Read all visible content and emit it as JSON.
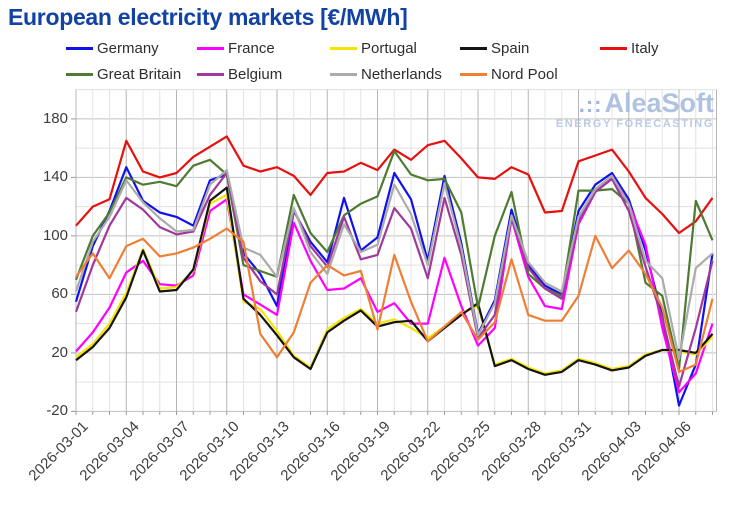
{
  "title": "European electricity markets [€/MWh]",
  "watermark": {
    "dots": ".::",
    "brand": "AleaSoft",
    "tagline": "ENERGY FORECASTING"
  },
  "chart_data": {
    "type": "line",
    "title": "European electricity markets [€/MWh]",
    "x": [
      "2026-03-01",
      "2026-03-02",
      "2026-03-03",
      "2026-03-04",
      "2026-03-05",
      "2026-03-06",
      "2026-03-07",
      "2026-03-08",
      "2026-03-09",
      "2026-03-10",
      "2026-03-11",
      "2026-03-12",
      "2026-03-13",
      "2026-03-14",
      "2026-03-15",
      "2026-03-16",
      "2026-03-17",
      "2026-03-18",
      "2026-03-19",
      "2026-03-20",
      "2026-03-21",
      "2026-03-22",
      "2026-03-23",
      "2026-03-24",
      "2026-03-25",
      "2026-03-26",
      "2026-03-27",
      "2026-03-28",
      "2026-03-29",
      "2026-03-30",
      "2026-03-31",
      "2026-04-01",
      "2026-04-02",
      "2026-04-03",
      "2026-04-04",
      "2026-04-05",
      "2026-04-06",
      "2026-04-07",
      "2026-04-08"
    ],
    "x_tick_labels": [
      "2026-03-01",
      "2026-03-04",
      "2026-03-07",
      "2026-03-10",
      "2026-03-13",
      "2026-03-16",
      "2026-03-19",
      "2026-03-22",
      "2026-03-25",
      "2026-03-28",
      "2026-03-31",
      "2026-04-03",
      "2026-04-06"
    ],
    "ylim": [
      -20,
      200
    ],
    "yticks": [
      -20,
      20,
      60,
      100,
      140,
      180
    ],
    "grid": true,
    "legend_position": "top",
    "ylabel": "",
    "xlabel": "",
    "series": [
      {
        "name": "Germany",
        "color": "#1111ee",
        "values": [
          55,
          93,
          117,
          147,
          124,
          116,
          113,
          107,
          138,
          142,
          88,
          74,
          52,
          117,
          96,
          82,
          126,
          90,
          99,
          143,
          125,
          83,
          141,
          95,
          33,
          56,
          118,
          80,
          66,
          60,
          117,
          135,
          143,
          125,
          90,
          45,
          -16,
          12,
          88
        ]
      },
      {
        "name": "France",
        "color": "#ff00ff",
        "values": [
          21,
          34,
          51,
          75,
          83,
          67,
          66,
          73,
          117,
          125,
          60,
          53,
          46,
          109,
          83,
          63,
          64,
          71,
          48,
          54,
          40,
          40,
          85,
          52,
          25,
          37,
          112,
          72,
          52,
          50,
          108,
          130,
          140,
          122,
          94,
          37,
          -7,
          6,
          40
        ]
      },
      {
        "name": "Portugal",
        "color": "#f5e400",
        "values": [
          17,
          26,
          40,
          61,
          91,
          64,
          65,
          76,
          122,
          128,
          55,
          50,
          35,
          18,
          10,
          36,
          44,
          50,
          40,
          43,
          37,
          30,
          38,
          47,
          52,
          12,
          16,
          10,
          6,
          8,
          16,
          13,
          9,
          11,
          19,
          22,
          21,
          19,
          31
        ]
      },
      {
        "name": "Spain",
        "color": "#141414",
        "values": [
          15,
          24,
          37,
          58,
          90,
          62,
          63,
          77,
          124,
          133,
          57,
          46,
          32,
          17,
          9,
          34,
          42,
          49,
          38,
          41,
          42,
          28,
          37,
          46,
          54,
          11,
          15,
          9,
          5,
          7,
          15,
          12,
          8,
          10,
          18,
          22,
          22,
          20,
          33
        ]
      },
      {
        "name": "Italy",
        "color": "#e80f0f",
        "values": [
          107,
          120,
          125,
          165,
          144,
          140,
          143,
          154,
          161,
          168,
          148,
          144,
          147,
          141,
          128,
          143,
          144,
          150,
          145,
          159,
          152,
          162,
          165,
          153,
          140,
          139,
          147,
          142,
          116,
          117,
          151,
          155,
          159,
          144,
          126,
          115,
          102,
          110,
          126
        ]
      },
      {
        "name": "Great Britain",
        "color": "#4e7b32",
        "values": [
          70,
          100,
          116,
          140,
          135,
          137,
          134,
          148,
          152,
          142,
          80,
          76,
          72,
          128,
          102,
          89,
          114,
          122,
          127,
          158,
          142,
          138,
          139,
          116,
          51,
          100,
          130,
          74,
          64,
          59,
          131,
          131,
          132,
          122,
          68,
          59,
          9,
          124,
          97
        ]
      },
      {
        "name": "Belgium",
        "color": "#a0399b",
        "values": [
          48,
          80,
          107,
          126,
          118,
          106,
          101,
          103,
          128,
          143,
          85,
          69,
          60,
          118,
          93,
          79,
          113,
          84,
          87,
          119,
          105,
          71,
          126,
          87,
          30,
          46,
          112,
          78,
          64,
          57,
          110,
          130,
          139,
          117,
          79,
          44,
          -3,
          37,
          83
        ]
      },
      {
        "name": "Netherlands",
        "color": "#ababab",
        "values": [
          62,
          96,
          113,
          138,
          123,
          112,
          103,
          104,
          135,
          145,
          92,
          87,
          72,
          119,
          89,
          74,
          108,
          89,
          94,
          135,
          115,
          80,
          136,
          92,
          32,
          54,
          114,
          82,
          68,
          62,
          113,
          132,
          141,
          122,
          83,
          71,
          16,
          78,
          88
        ]
      },
      {
        "name": "Nord Pool",
        "color": "#ee7f35",
        "values": [
          72,
          88,
          71,
          93,
          98,
          86,
          88,
          92,
          98,
          105,
          96,
          33,
          17,
          34,
          68,
          80,
          73,
          76,
          36,
          87,
          55,
          28,
          38,
          48,
          29,
          41,
          84,
          46,
          42,
          42,
          59,
          100,
          78,
          90,
          74,
          51,
          7,
          12,
          57
        ]
      }
    ]
  }
}
